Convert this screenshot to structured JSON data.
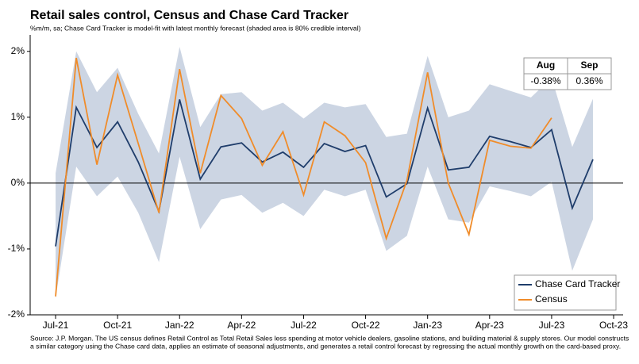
{
  "chart_data": {
    "type": "line",
    "title": "Retail sales control, Census and Chase Card Tracker",
    "subtitle": "%m/m, sa; Chase Card Tracker is model-fit with latest monthly forecast (shaded area is 80% credible interval)",
    "source": [
      "Source: J.P. Morgan. The US census defines Retail Control as Total Retail Sales less spending at motor vehicle dealers, gasoline stations, and building material & supply stores. Our model constructs",
      "a similar category using the Chase card data, applies an estimate of seasonal adjustments, and generates a retail control forecast by regressing the actual monthly growth on the card-based proxy."
    ],
    "x": [
      0,
      1,
      2,
      3,
      4,
      5,
      6,
      7,
      8,
      9,
      10,
      11,
      12,
      13,
      14,
      15,
      16,
      17,
      18,
      19,
      20,
      21,
      22,
      23,
      24,
      25,
      26
    ],
    "series": [
      {
        "name": "Chase Card Tracker",
        "color": "#1f3d6b",
        "values": [
          -0.96,
          1.15,
          0.54,
          0.93,
          0.32,
          -0.43,
          1.27,
          0.06,
          0.55,
          0.61,
          0.32,
          0.47,
          0.24,
          0.6,
          0.48,
          0.57,
          -0.21,
          -0.01,
          1.14,
          0.2,
          0.24,
          0.71,
          0.63,
          0.54,
          0.81,
          -0.38,
          0.36
        ]
      },
      {
        "name": "Census",
        "color": "#f08c2a",
        "values": [
          -1.72,
          1.9,
          0.28,
          1.64,
          0.6,
          -0.45,
          1.73,
          0.15,
          1.33,
          0.98,
          0.27,
          0.78,
          -0.18,
          0.93,
          0.72,
          0.31,
          -0.84,
          0.04,
          1.68,
          0.0,
          -0.78,
          0.65,
          0.56,
          0.53,
          0.99,
          null,
          null
        ]
      }
    ],
    "band": {
      "color": "#ccd5e3",
      "upper": [
        0.15,
        2.0,
        1.38,
        1.75,
        1.05,
        0.45,
        2.07,
        0.85,
        1.35,
        1.38,
        1.1,
        1.22,
        0.98,
        1.22,
        1.15,
        1.2,
        0.7,
        0.75,
        1.93,
        1.0,
        1.1,
        1.5,
        1.4,
        1.3,
        1.6,
        0.55,
        1.28
      ],
      "lower": [
        -1.75,
        0.25,
        -0.2,
        0.1,
        -0.45,
        -1.2,
        0.4,
        -0.7,
        -0.25,
        -0.18,
        -0.45,
        -0.3,
        -0.5,
        -0.1,
        -0.2,
        -0.1,
        -1.03,
        -0.8,
        0.25,
        -0.55,
        -0.6,
        -0.05,
        -0.12,
        -0.2,
        0.02,
        -1.33,
        -0.55
      ]
    },
    "xlim": [
      -1.23,
      27.46
    ],
    "xticks": [
      {
        "value": 0,
        "label": "Jul-21"
      },
      {
        "value": 3,
        "label": "Oct-21"
      },
      {
        "value": 6,
        "label": "Jan-22"
      },
      {
        "value": 9,
        "label": "Apr-22"
      },
      {
        "value": 12,
        "label": "Jul-22"
      },
      {
        "value": 15,
        "label": "Oct-22"
      },
      {
        "value": 18,
        "label": "Jan-23"
      },
      {
        "value": 21,
        "label": "Apr-23"
      },
      {
        "value": 24,
        "label": "Jul-23"
      },
      {
        "value": 27,
        "label": "Oct-23"
      }
    ],
    "ylim": [
      -2,
      2.25
    ],
    "yticks": [
      {
        "value": -2,
        "label": "-2%"
      },
      {
        "value": -1,
        "label": "-1%"
      },
      {
        "value": 0,
        "label": "0%"
      },
      {
        "value": 1,
        "label": "1%"
      },
      {
        "value": 2,
        "label": "2%"
      }
    ],
    "legend": "lower right",
    "table": {
      "headers": [
        "Aug",
        "Sep"
      ],
      "values": [
        "-0.38%",
        "0.36%"
      ]
    }
  }
}
